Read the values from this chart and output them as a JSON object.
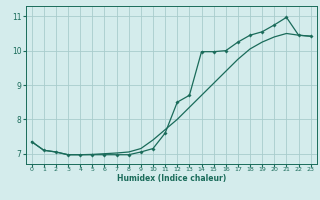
{
  "title": "",
  "xlabel": "Humidex (Indice chaleur)",
  "ylabel": "",
  "bg_color": "#d4ecec",
  "grid_color": "#a8cccc",
  "line_color": "#1a6b5a",
  "xlim": [
    -0.5,
    23.5
  ],
  "ylim": [
    6.7,
    11.3
  ],
  "xticks": [
    0,
    1,
    2,
    3,
    4,
    5,
    6,
    7,
    8,
    9,
    10,
    11,
    12,
    13,
    14,
    15,
    16,
    17,
    18,
    19,
    20,
    21,
    22,
    23
  ],
  "yticks": [
    7,
    8,
    9,
    10,
    11
  ],
  "smooth_line": [
    [
      0,
      7.35
    ],
    [
      1,
      7.1
    ],
    [
      2,
      7.05
    ],
    [
      3,
      6.97
    ],
    [
      4,
      6.97
    ],
    [
      5,
      6.98
    ],
    [
      6,
      7.0
    ],
    [
      7,
      7.02
    ],
    [
      8,
      7.05
    ],
    [
      9,
      7.15
    ],
    [
      10,
      7.4
    ],
    [
      11,
      7.7
    ],
    [
      12,
      8.0
    ],
    [
      13,
      8.35
    ],
    [
      14,
      8.7
    ],
    [
      15,
      9.05
    ],
    [
      16,
      9.4
    ],
    [
      17,
      9.75
    ],
    [
      18,
      10.05
    ],
    [
      19,
      10.25
    ],
    [
      20,
      10.4
    ],
    [
      21,
      10.5
    ],
    [
      22,
      10.45
    ],
    [
      23,
      10.42
    ]
  ],
  "marker_line": [
    [
      0,
      7.35
    ],
    [
      1,
      7.1
    ],
    [
      2,
      7.05
    ],
    [
      3,
      6.97
    ],
    [
      4,
      6.97
    ],
    [
      5,
      6.97
    ],
    [
      6,
      6.97
    ],
    [
      7,
      6.97
    ],
    [
      8,
      6.97
    ],
    [
      9,
      7.05
    ],
    [
      10,
      7.15
    ],
    [
      11,
      7.6
    ],
    [
      12,
      8.5
    ],
    [
      13,
      8.7
    ],
    [
      14,
      9.97
    ],
    [
      15,
      9.97
    ],
    [
      16,
      10.0
    ],
    [
      17,
      10.25
    ],
    [
      18,
      10.45
    ],
    [
      19,
      10.55
    ],
    [
      20,
      10.75
    ],
    [
      21,
      10.97
    ],
    [
      22,
      10.45
    ],
    [
      23,
      10.42
    ]
  ]
}
